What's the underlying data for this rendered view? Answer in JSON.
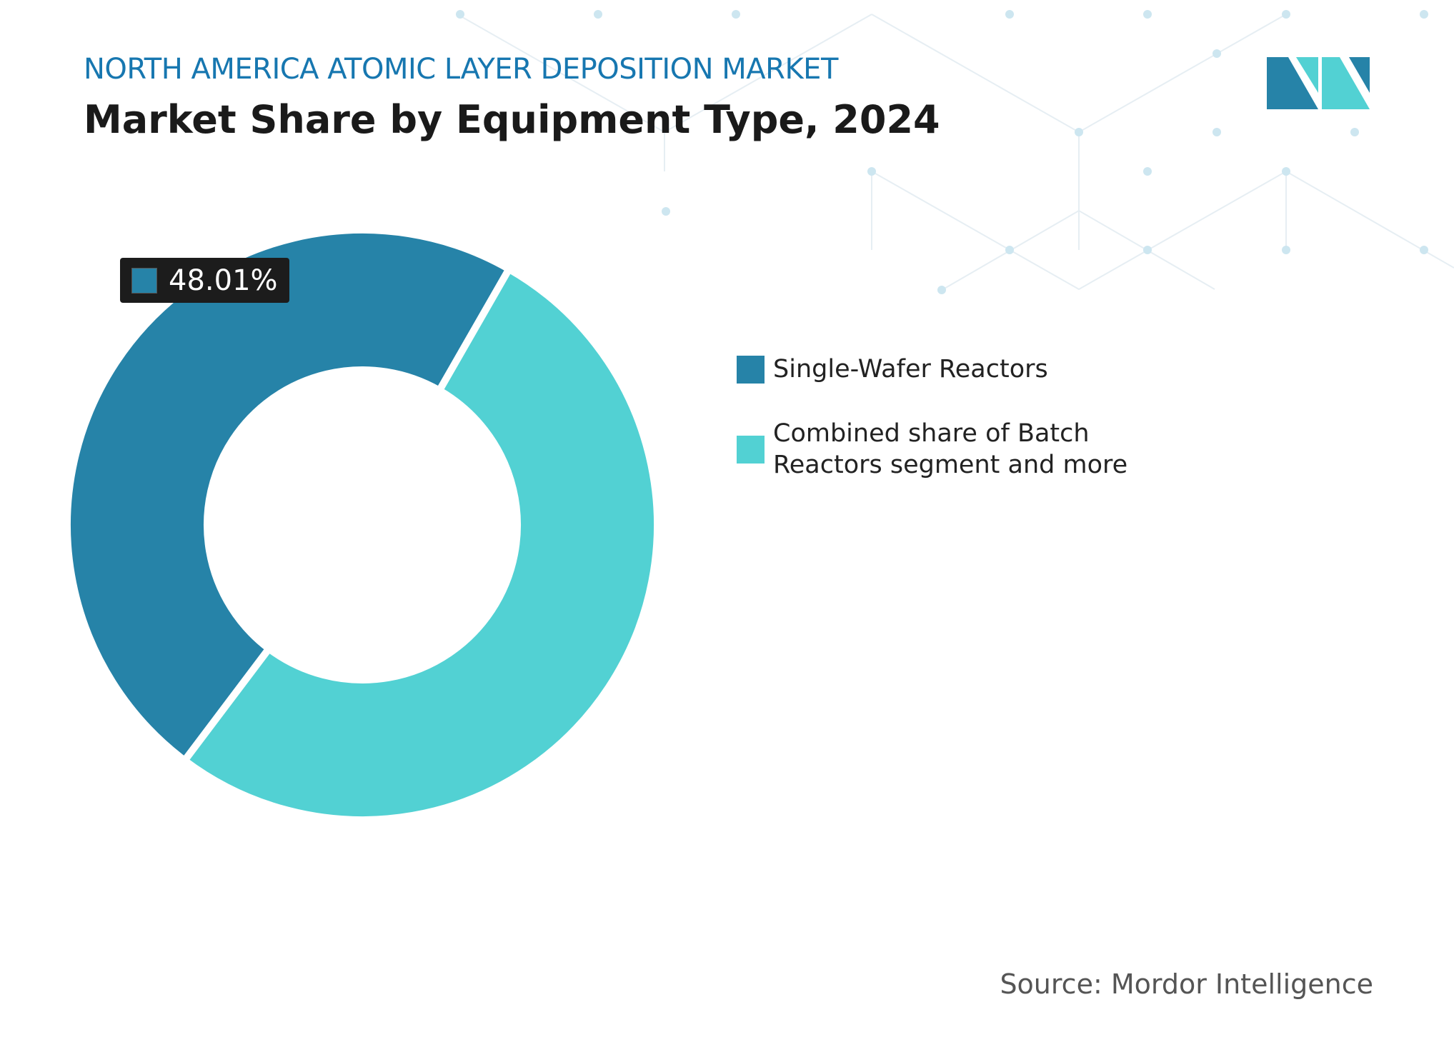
{
  "chart_data": {
    "type": "donut",
    "title": "NORTH AMERICA ATOMIC LAYER DEPOSITION MARKET",
    "subtitle": "Market Share by Equipment Type, 2024",
    "categories": [
      "Single-Wafer Reactors",
      "Combined share of Batch Reactors segment and more"
    ],
    "values": [
      48.01,
      51.99
    ],
    "value_labels": [
      "48.01%",
      null
    ],
    "colors": [
      "#2683a8",
      "#52d1d3"
    ],
    "source": "Source: Mordor Intelligence"
  }
}
